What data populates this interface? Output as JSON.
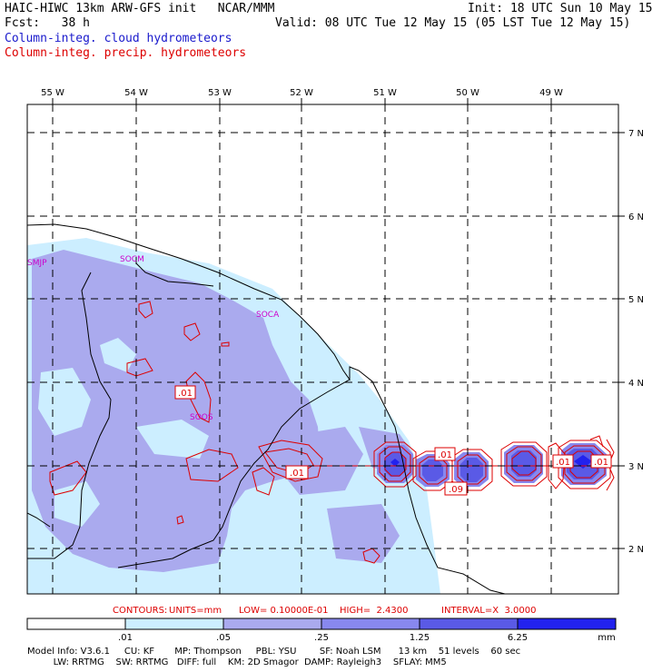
{
  "header": {
    "title": "HAIC-HIWC 13km ARW-GFS init   NCAR/MMM",
    "init": "Init: 18 UTC Sun 10 May 15",
    "fcst": "Fcst:   38 h",
    "valid": "Valid: 08 UTC Tue 12 May 15 (05 LST Tue 12 May 15)",
    "field_cloud": "Column-integ. cloud hydrometeors",
    "field_precip": "Column-integ. precip. hydrometeors"
  },
  "map": {
    "lon_labels": [
      "55 W",
      "54 W",
      "53 W",
      "52 W",
      "51 W",
      "50 W",
      "49 W"
    ],
    "lat_labels": [
      "7 N",
      "6 N",
      "5 N",
      "4 N",
      "3 N",
      "2 N"
    ],
    "stations": [
      "SMJP",
      "SOCM",
      "SOCA",
      "SOOS"
    ],
    "contour_labels": [
      ".01",
      ".01",
      ".01",
      ".09",
      ".01",
      ".01"
    ]
  },
  "contour_info": {
    "contours": "CONTOURS:",
    "units": "UNITS=mm",
    "low": "LOW= 0.10000E-01",
    "high": "HIGH=  2.4300",
    "interval": "INTERVAL=X  3.0000"
  },
  "legend": {
    "labels": [
      ".01",
      ".05",
      ".25",
      "1.25",
      "6.25"
    ],
    "unit": "mm",
    "colors": [
      "#ffffff",
      "#cceeff",
      "#aaaaee",
      "#8888ee",
      "#5a5ae6",
      "#2222ee"
    ]
  },
  "footer": {
    "line1": "Model Info: V3.6.1     CU: KF       MP: Thompson     PBL: YSU        SF: Noah LSM      13 km    51 levels    60 sec",
    "line2": "         LW: RRTMG    SW: RRTMG   DIFF: full    KM: 2D Smagor  DAMP: Rayleigh3    SFLAY: MM5"
  }
}
